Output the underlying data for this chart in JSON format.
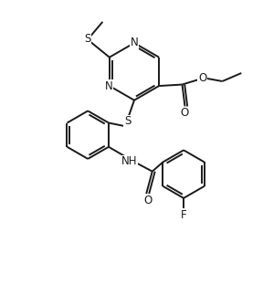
{
  "background_color": "#ffffff",
  "line_color": "#1a1a1a",
  "line_width": 1.4,
  "font_size": 8.5,
  "figsize": [
    2.88,
    3.12
  ],
  "dpi": 100,
  "xlim": [
    0,
    9.6
  ],
  "ylim": [
    0,
    10.4
  ]
}
